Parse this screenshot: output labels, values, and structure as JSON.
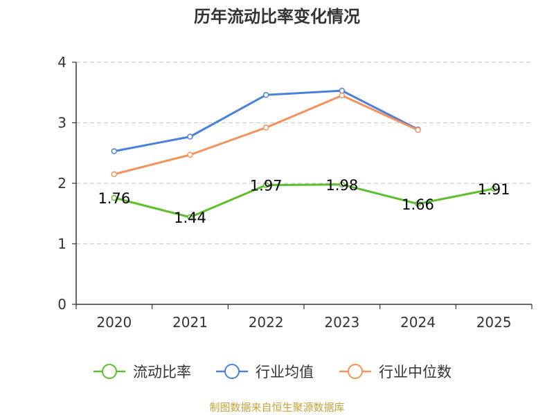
{
  "chart_data": {
    "type": "line",
    "title": "历年流动比率变化情况",
    "categories": [
      "2020",
      "2021",
      "2022",
      "2023",
      "2024",
      "2025"
    ],
    "ylim": [
      0,
      4
    ],
    "yticks": [
      0,
      1,
      2,
      3,
      4
    ],
    "grid": true,
    "legend_position": "bottom",
    "series": [
      {
        "name": "流动比率",
        "color": "#5bbf2b",
        "values": [
          1.76,
          1.44,
          1.97,
          1.98,
          1.66,
          1.91
        ],
        "show_labels": true,
        "labels": [
          "1.76",
          "1.44",
          "1.97",
          "1.98",
          "1.66",
          "1.91"
        ]
      },
      {
        "name": "行业均值",
        "color": "#4a7fdc",
        "values": [
          2.53,
          2.77,
          3.46,
          3.53,
          2.89,
          null
        ],
        "show_labels": false
      },
      {
        "name": "行业中位数",
        "color": "#f4925c",
        "values": [
          2.15,
          2.47,
          2.92,
          3.45,
          2.88,
          null
        ],
        "show_labels": false
      }
    ],
    "source": "制图数据来自恒生聚源数据库"
  }
}
